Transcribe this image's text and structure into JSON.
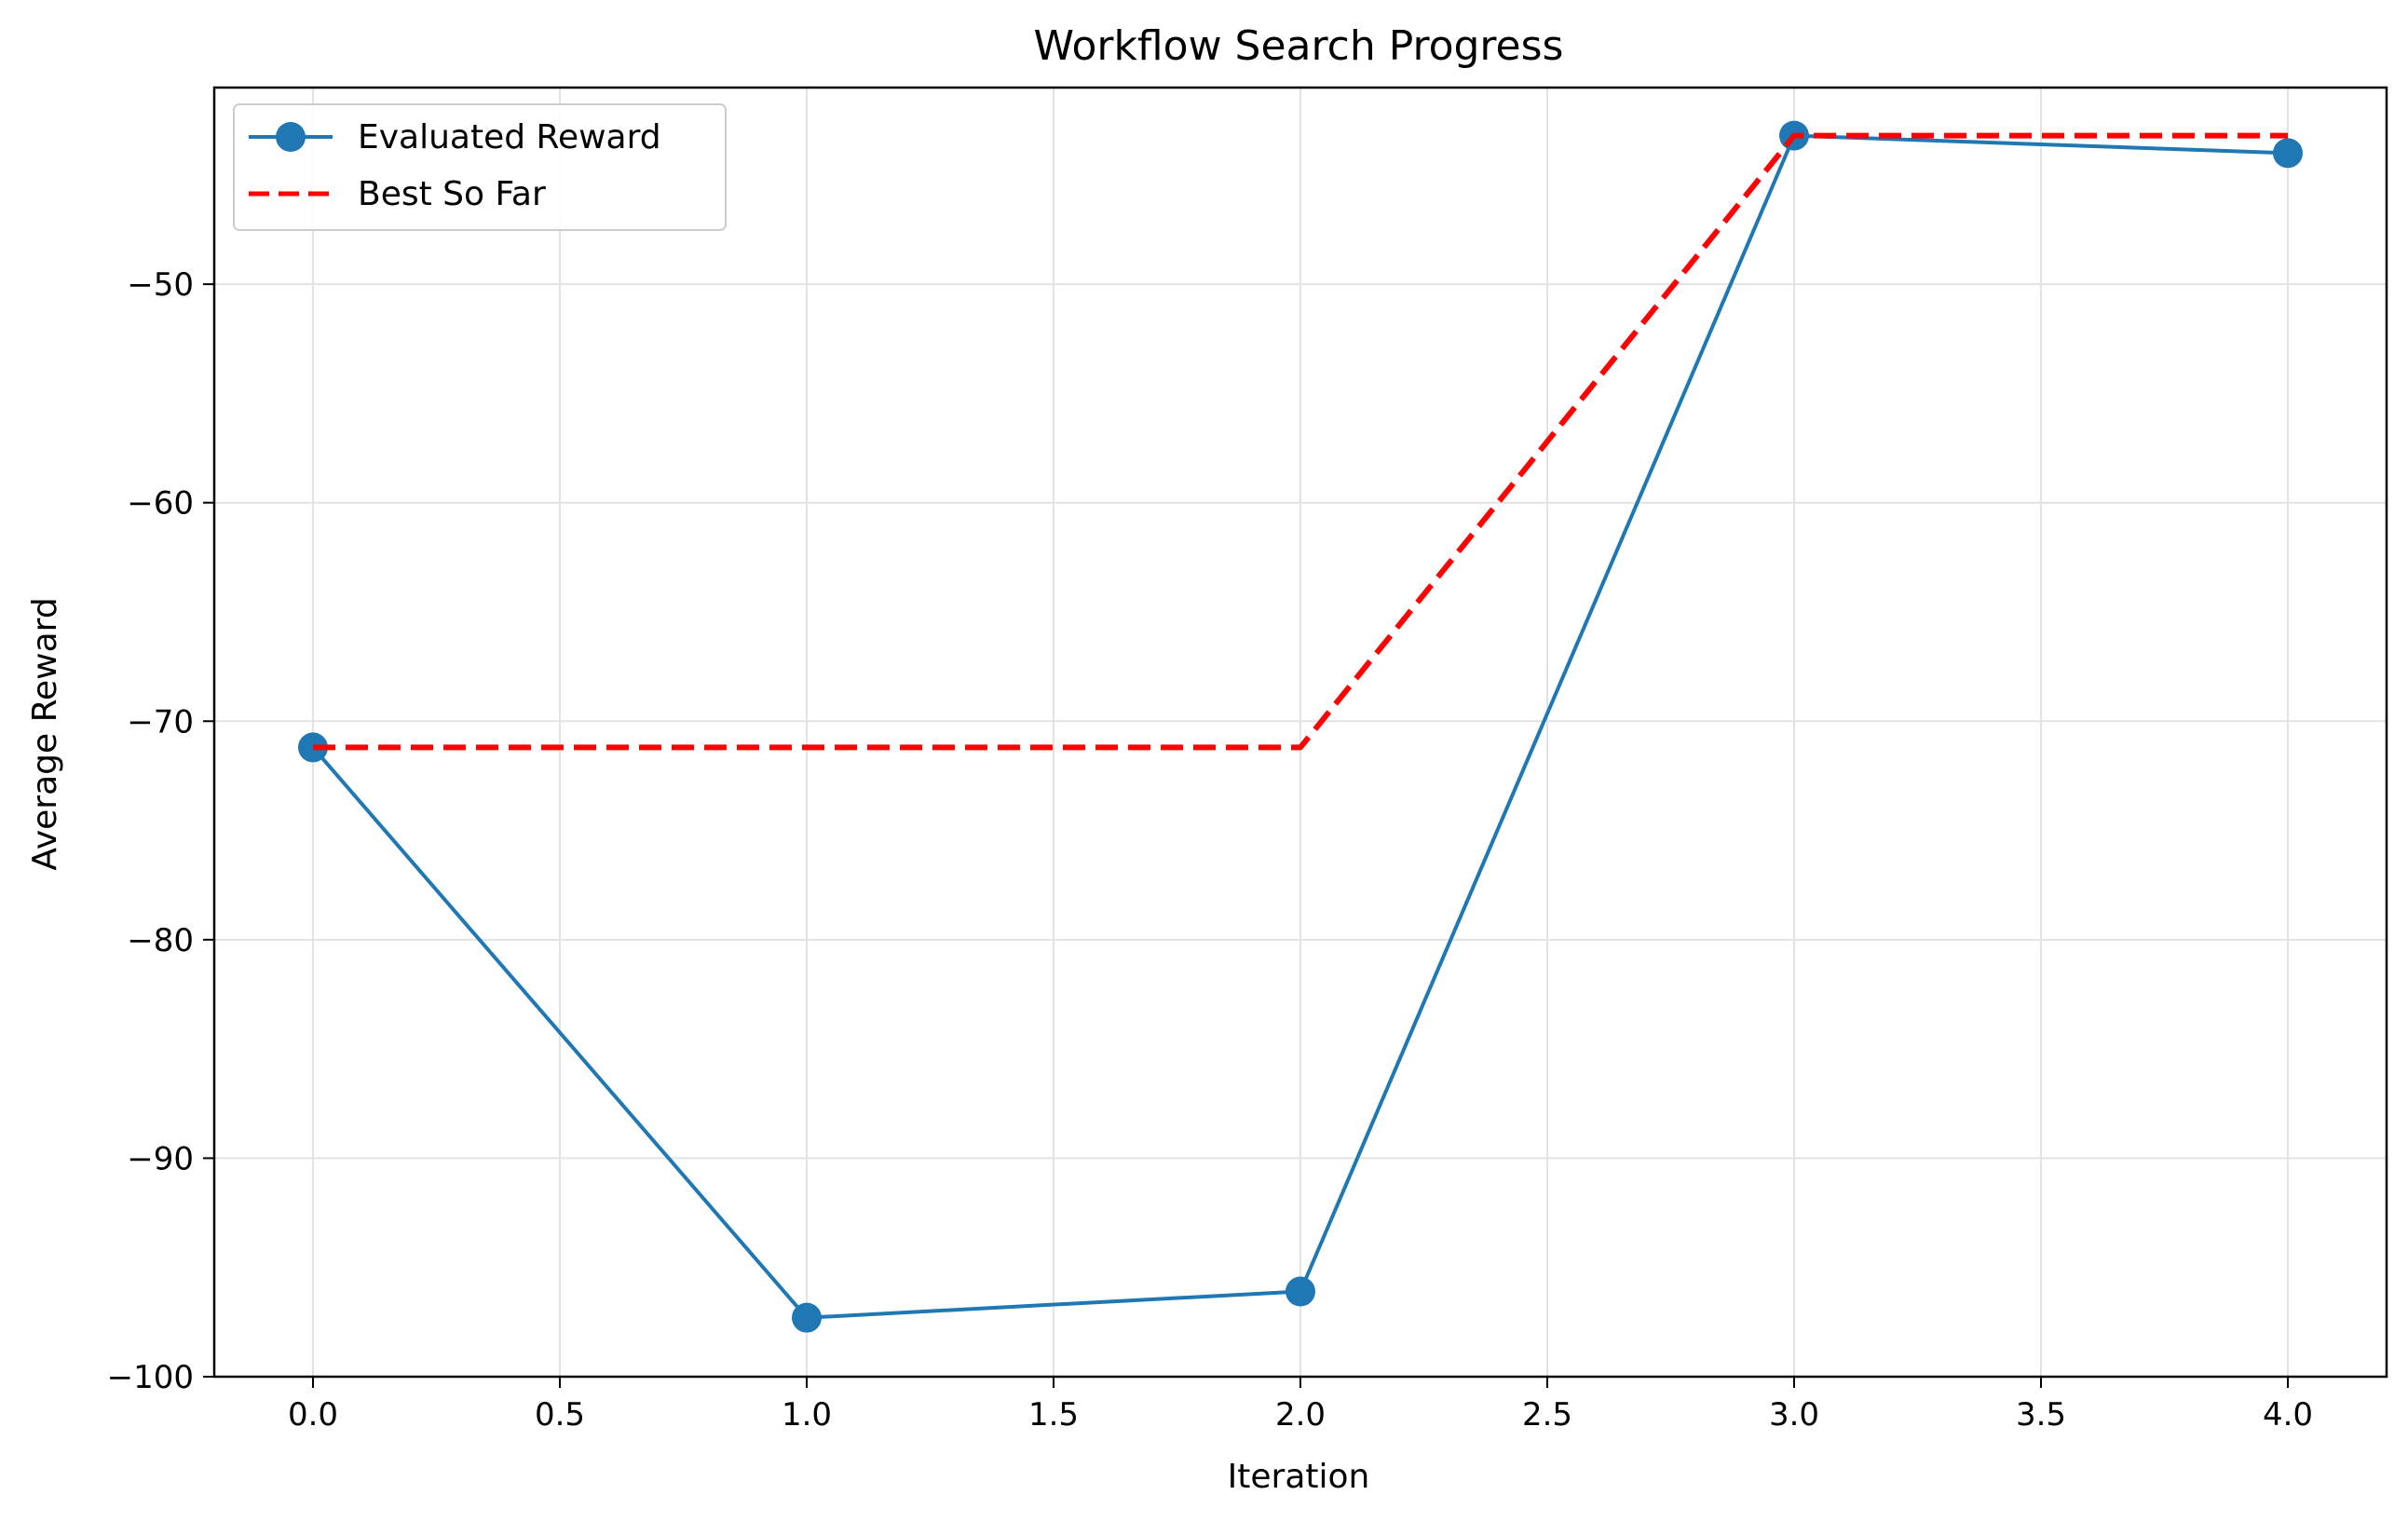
{
  "chart_data": {
    "type": "line",
    "title": "Workflow Search Progress",
    "xlabel": "Iteration",
    "ylabel": "Average Reward",
    "xlim": [
      -0.2,
      4.2
    ],
    "ylim": [
      -100,
      -41
    ],
    "xticks": [
      0.0,
      0.5,
      1.0,
      1.5,
      2.0,
      2.5,
      3.0,
      3.5,
      4.0
    ],
    "xtick_labels": [
      "0.0",
      "0.5",
      "1.0",
      "1.5",
      "2.0",
      "2.5",
      "3.0",
      "3.5",
      "4.0"
    ],
    "yticks": [
      -100,
      -90,
      -80,
      -70,
      -60,
      -50
    ],
    "ytick_labels": [
      "−100",
      "−90",
      "−80",
      "−70",
      "−60",
      "−50"
    ],
    "grid": true,
    "legend_position": "upper-left",
    "series": [
      {
        "name": "Evaluated Reward",
        "color": "#1f77b4",
        "style": "solid",
        "markers": true,
        "x": [
          0,
          1,
          2,
          3,
          4
        ],
        "y": [
          -71.2,
          -97.3,
          -96.1,
          -43.2,
          -44.0
        ]
      },
      {
        "name": "Best So Far",
        "color": "#ff0000",
        "style": "dashed",
        "markers": false,
        "x": [
          0,
          1,
          2,
          3,
          4
        ],
        "y": [
          -71.2,
          -71.2,
          -71.2,
          -43.2,
          -43.2
        ]
      }
    ]
  }
}
